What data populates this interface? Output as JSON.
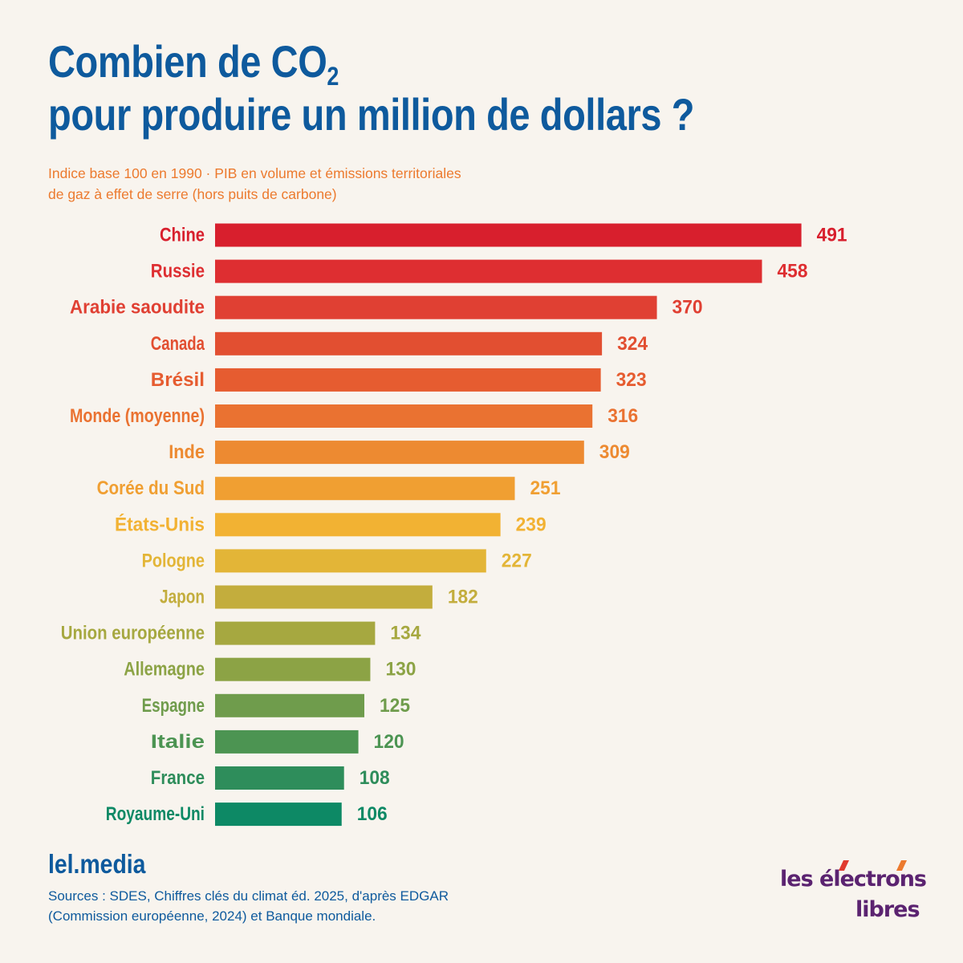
{
  "title": {
    "line1_main": "Combien de CO",
    "line1_sub": "2",
    "line2": "pour produire un million de dollars ?"
  },
  "subtitle": {
    "line1": "Indice base 100 en 1990 · PIB en volume et émissions territoriales",
    "line2": "de gaz à effet de serre (hors puits de carbone)"
  },
  "chart_data": {
    "type": "bar",
    "orientation": "horizontal",
    "categories": [
      "Chine",
      "Russie",
      "Arabie saoudite",
      "Canada",
      "Brésil",
      "Monde (moyenne)",
      "Inde",
      "Corée du Sud",
      "États-Unis",
      "Pologne",
      "Japon",
      "Union européenne",
      "Allemagne",
      "Espagne",
      "Italie",
      "France",
      "Royaume-Uni"
    ],
    "values": [
      491,
      458,
      370,
      324,
      323,
      316,
      309,
      251,
      239,
      227,
      182,
      134,
      130,
      125,
      120,
      108,
      106
    ],
    "colors": [
      "#d81f2d",
      "#de2e31",
      "#e04033",
      "#e24f31",
      "#e65c30",
      "#ea7231",
      "#ed8a31",
      "#f09f32",
      "#f2b233",
      "#e3b537",
      "#c3ad3d",
      "#a6a840",
      "#8ca345",
      "#6f9c4c",
      "#4c9452",
      "#2e8d5b",
      "#0d8965"
    ],
    "grid": false,
    "legend": "none",
    "xlabel": "",
    "ylabel": ""
  },
  "footer": {
    "brand_url": "lel.media",
    "sources_line1": "Sources : SDES, Chiffres clés du climat éd. 2025, d'après EDGAR",
    "sources_line2": "(Commission européenne, 2024) et Banque mondiale.",
    "logo_line1": "les électrons",
    "logo_line2": "libres"
  }
}
